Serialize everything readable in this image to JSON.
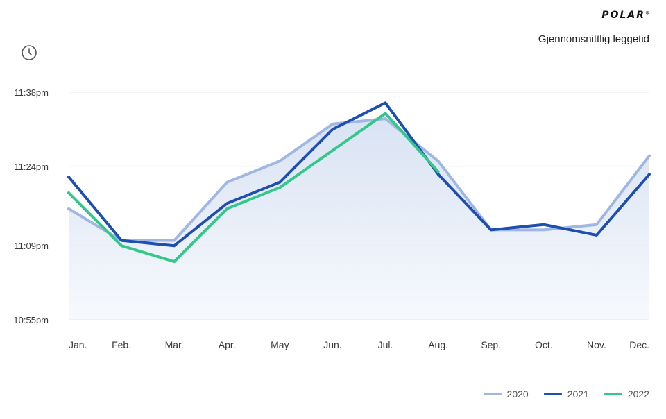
{
  "brand": {
    "name": "POLAR",
    "mark": "®"
  },
  "subtitle": "Gjennomsnittlig leggetid",
  "icons": {
    "clock": "clock-icon"
  },
  "colors": {
    "s2020": "#9fb7e2",
    "s2021": "#1d4fb0",
    "s2022": "#33c88a",
    "area_top": "#d9e3f3",
    "area_bottom": "#f7f9fd",
    "grid": "#e3e7ee"
  },
  "chart_data": {
    "type": "line",
    "title": "Gjennomsnittlig leggetid",
    "xlabel": "",
    "ylabel": "",
    "categories": [
      "Jan.",
      "Feb.",
      "Mar.",
      "Apr.",
      "May",
      "Jun.",
      "Jul.",
      "Aug.",
      "Sep.",
      "Oct.",
      "Nov.",
      "Dec."
    ],
    "y_unit": "minutes after 22:00",
    "ylim": [
      55,
      98
    ],
    "yticks": [
      {
        "value": 55,
        "label": "10:55pm"
      },
      {
        "value": 69,
        "label": "11:09pm"
      },
      {
        "value": 84,
        "label": "11:24pm"
      },
      {
        "value": 98,
        "label": "11:38pm"
      }
    ],
    "grid": true,
    "legend_position": "bottom-right",
    "series": [
      {
        "name": "2020",
        "values": [
          76,
          70,
          70,
          81,
          85,
          92,
          93,
          85,
          72,
          72,
          73,
          86
        ]
      },
      {
        "name": "2021",
        "values": [
          82,
          70,
          69,
          77,
          81,
          91,
          96,
          82.5,
          72,
          73,
          71,
          82.5
        ]
      },
      {
        "name": "2022",
        "values": [
          79,
          69,
          66,
          76,
          80,
          87,
          94,
          83,
          null,
          null,
          null,
          null
        ]
      }
    ]
  }
}
